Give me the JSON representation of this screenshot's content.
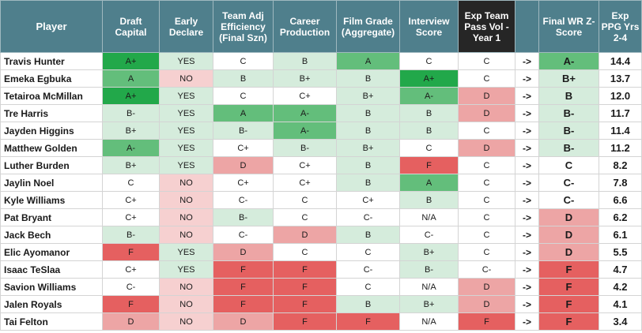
{
  "colors": {
    "header_bg": "#4f7f8c",
    "header_dark_bg": "#262626",
    "green_strong": "#22a84a",
    "green_mid": "#63be7b",
    "green_light": "#d5ecdc",
    "neutral": "#ffffff",
    "red_light": "#f6d0d0",
    "red_mid": "#eda5a5",
    "red_strong": "#e56060"
  },
  "headers": [
    "Player",
    "Draft Capital",
    "Early Declare",
    "Team Adj Efficiency (Final Szn)",
    "Career Production",
    "Film Grade (Aggregate)",
    "Interview Score",
    "Exp Team Pass Vol - Year 1",
    "",
    "Final WR Z-Score",
    "Exp PPG Yrs 2-4"
  ],
  "rows": [
    {
      "player": "Travis Hunter",
      "draft": "A+",
      "early": "YES",
      "eff": "C",
      "prod": "B",
      "film": "A",
      "interview": "C",
      "pass_vol": "C",
      "arrow": "->",
      "final": "A-",
      "ppg": "14.4"
    },
    {
      "player": "Emeka Egbuka",
      "draft": "A",
      "early": "NO",
      "eff": "B",
      "prod": "B+",
      "film": "B",
      "interview": "A+",
      "pass_vol": "C",
      "arrow": "->",
      "final": "B+",
      "ppg": "13.7"
    },
    {
      "player": "Tetairoa McMillan",
      "draft": "A+",
      "early": "YES",
      "eff": "C",
      "prod": "C+",
      "film": "B+",
      "interview": "A-",
      "pass_vol": "D",
      "arrow": "->",
      "final": "B",
      "ppg": "12.0"
    },
    {
      "player": "Tre Harris",
      "draft": "B-",
      "early": "YES",
      "eff": "A",
      "prod": "A-",
      "film": "B",
      "interview": "B",
      "pass_vol": "D",
      "arrow": "->",
      "final": "B-",
      "ppg": "11.7"
    },
    {
      "player": "Jayden Higgins",
      "draft": "B+",
      "early": "YES",
      "eff": "B-",
      "prod": "A-",
      "film": "B",
      "interview": "B",
      "pass_vol": "C",
      "arrow": "->",
      "final": "B-",
      "ppg": "11.4"
    },
    {
      "player": "Matthew Golden",
      "draft": "A-",
      "early": "YES",
      "eff": "C+",
      "prod": "B-",
      "film": "B+",
      "interview": "C",
      "pass_vol": "D",
      "arrow": "->",
      "final": "B-",
      "ppg": "11.2"
    },
    {
      "player": "Luther Burden",
      "draft": "B+",
      "early": "YES",
      "eff": "D",
      "prod": "C+",
      "film": "B",
      "interview": "F",
      "pass_vol": "C",
      "arrow": "->",
      "final": "C",
      "ppg": "8.2"
    },
    {
      "player": "Jaylin Noel",
      "draft": "C",
      "early": "NO",
      "eff": "C+",
      "prod": "C+",
      "film": "B",
      "interview": "A",
      "pass_vol": "C",
      "arrow": "->",
      "final": "C-",
      "ppg": "7.8"
    },
    {
      "player": "Kyle Williams",
      "draft": "C+",
      "early": "NO",
      "eff": "C-",
      "prod": "C",
      "film": "C+",
      "interview": "B",
      "pass_vol": "C",
      "arrow": "->",
      "final": "C-",
      "ppg": "6.6"
    },
    {
      "player": "Pat Bryant",
      "draft": "C+",
      "early": "NO",
      "eff": "B-",
      "prod": "C",
      "film": "C-",
      "interview": "N/A",
      "pass_vol": "C",
      "arrow": "->",
      "final": "D",
      "ppg": "6.2"
    },
    {
      "player": "Jack Bech",
      "draft": "B-",
      "early": "NO",
      "eff": "C-",
      "prod": "D",
      "film": "B",
      "interview": "C-",
      "pass_vol": "C",
      "arrow": "->",
      "final": "D",
      "ppg": "6.1"
    },
    {
      "player": "Elic Ayomanor",
      "draft": "F",
      "early": "YES",
      "eff": "D",
      "prod": "C",
      "film": "C",
      "interview": "B+",
      "pass_vol": "C",
      "arrow": "->",
      "final": "D",
      "ppg": "5.5"
    },
    {
      "player": "Isaac TeSlaa",
      "draft": "C+",
      "early": "YES",
      "eff": "F",
      "prod": "F",
      "film": "C-",
      "interview": "B-",
      "pass_vol": "C-",
      "arrow": "->",
      "final": "F",
      "ppg": "4.7"
    },
    {
      "player": "Savion Williams",
      "draft": "C-",
      "early": "NO",
      "eff": "F",
      "prod": "F",
      "film": "C",
      "interview": "N/A",
      "pass_vol": "D",
      "arrow": "->",
      "final": "F",
      "ppg": "4.2"
    },
    {
      "player": "Jalen Royals",
      "draft": "F",
      "early": "NO",
      "eff": "F",
      "prod": "F",
      "film": "B",
      "interview": "B+",
      "pass_vol": "D",
      "arrow": "->",
      "final": "F",
      "ppg": "4.1"
    },
    {
      "player": "Tai Felton",
      "draft": "D",
      "early": "NO",
      "eff": "D",
      "prod": "F",
      "film": "F",
      "interview": "N/A",
      "pass_vol": "F",
      "arrow": "->",
      "final": "F",
      "ppg": "3.4"
    }
  ]
}
